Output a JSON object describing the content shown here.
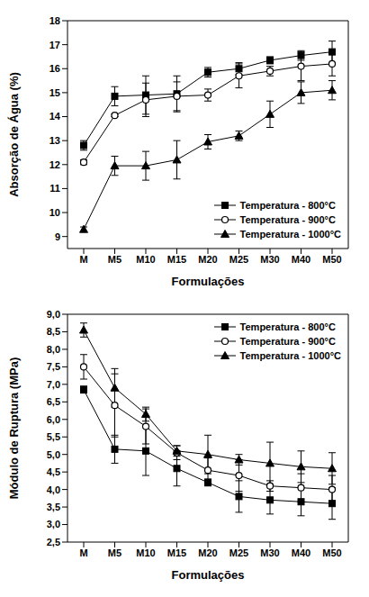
{
  "chart_data": [
    {
      "type": "line",
      "x_label": "Formulações",
      "y_label": "Absorção de Água (%)",
      "categories": [
        "M",
        "M5",
        "M10",
        "M15",
        "M20",
        "M25",
        "M30",
        "M40",
        "M50"
      ],
      "ylim": [
        8.5,
        18
      ],
      "yticks": [
        9,
        10,
        11,
        12,
        13,
        14,
        15,
        16,
        17,
        18
      ],
      "grid": false,
      "legend": "lower right",
      "series": [
        {
          "name": "Temperatura - 800°C",
          "color": "#000000",
          "marker": "square",
          "values": [
            12.8,
            14.85,
            14.9,
            14.95,
            15.85,
            16.0,
            16.35,
            16.55,
            16.7
          ],
          "errors": [
            0.2,
            0.4,
            0.8,
            0.75,
            0.2,
            0.25,
            0.15,
            0.2,
            0.45
          ]
        },
        {
          "name": "Temperatura - 900°C",
          "color": "#000000",
          "marker": "open_circle",
          "values": [
            12.1,
            14.05,
            14.7,
            14.85,
            14.9,
            15.7,
            15.9,
            16.1,
            16.2
          ],
          "errors": [
            0.1,
            0.05,
            0.7,
            0.6,
            0.25,
            0.5,
            0.2,
            0.6,
            0.5
          ]
        },
        {
          "name": "Temperatura - 1000°C",
          "color": "#000000",
          "marker": "triangle",
          "values": [
            9.3,
            11.95,
            11.95,
            12.2,
            12.95,
            13.2,
            14.1,
            15.0,
            15.1
          ],
          "errors": [
            0.1,
            0.4,
            0.6,
            0.8,
            0.3,
            0.2,
            0.55,
            0.45,
            0.4
          ]
        }
      ]
    },
    {
      "type": "line",
      "x_label": "Formulações",
      "y_label": "Módulo de Ruptura (MPa)",
      "categories": [
        "M",
        "M5",
        "M10",
        "M15",
        "M20",
        "M25",
        "M30",
        "M40",
        "M50"
      ],
      "ylim": [
        2.5,
        9.0
      ],
      "yticks": [
        {
          "value": 2.5,
          "label": "2,5"
        },
        {
          "value": 3.0,
          "label": "3,0"
        },
        {
          "value": 3.5,
          "label": "3,5"
        },
        {
          "value": 4.0,
          "label": "4,0"
        },
        {
          "value": 4.5,
          "label": "4,5"
        },
        {
          "value": 5.0,
          "label": "5,0"
        },
        {
          "value": 5.5,
          "label": "5,5"
        },
        {
          "value": 6.0,
          "label": "6,0"
        },
        {
          "value": 6.5,
          "label": "6,5"
        },
        {
          "value": 7.0,
          "label": "7,0"
        },
        {
          "value": 7.5,
          "label": "7,5"
        },
        {
          "value": 8.0,
          "label": "8,0"
        },
        {
          "value": 8.5,
          "label": "8,5"
        },
        {
          "value": 9.0,
          "label": "9,0"
        }
      ],
      "grid": false,
      "legend": "upper right",
      "series": [
        {
          "name": "Temperatura - 800°C",
          "color": "#000000",
          "marker": "square",
          "values": [
            6.85,
            5.15,
            5.1,
            4.6,
            4.2,
            3.8,
            3.7,
            3.65,
            3.6
          ],
          "errors": [
            0.1,
            0.4,
            0.7,
            0.5,
            0.1,
            0.45,
            0.4,
            0.4,
            0.45
          ]
        },
        {
          "name": "Temperatura - 900°C",
          "color": "#000000",
          "marker": "open_circle",
          "values": [
            7.5,
            6.4,
            5.8,
            5.05,
            4.55,
            4.4,
            4.1,
            4.05,
            4.0
          ],
          "errors": [
            0.35,
            0.9,
            0.5,
            0.2,
            0.35,
            0.45,
            0.15,
            0.4,
            0.4
          ]
        },
        {
          "name": "Temperatura - 1000°C",
          "color": "#000000",
          "marker": "triangle",
          "values": [
            8.55,
            6.9,
            6.15,
            5.1,
            5.0,
            4.85,
            4.75,
            4.65,
            4.6
          ],
          "errors": [
            0.2,
            0.55,
            0.2,
            0.15,
            0.55,
            0.15,
            0.6,
            0.45,
            0.45
          ]
        }
      ]
    }
  ]
}
